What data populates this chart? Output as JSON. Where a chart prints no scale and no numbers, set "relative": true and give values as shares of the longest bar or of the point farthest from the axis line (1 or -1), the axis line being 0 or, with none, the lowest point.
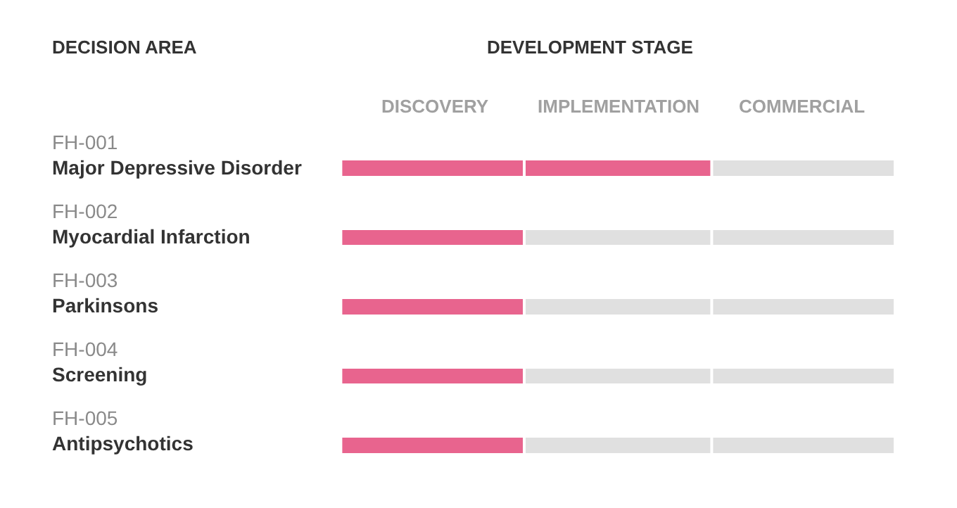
{
  "chart_data": {
    "type": "bar",
    "orientation": "horizontal",
    "stacked": true,
    "relative": true,
    "title": "DEVELOPMENT STAGE",
    "ylabel": "DECISION AREA",
    "annotations": [
      "DISCOVERY",
      "IMPLEMENTATION",
      "COMMERCIAL"
    ],
    "categories": [
      "FH-001\nMajor Depressive Disorder",
      "FH-002\nMyocardial Infarction",
      "FH-003\nParkinsons",
      "FH-004\nScreening",
      "FH-005\nAntipsychotics"
    ],
    "series": [
      {
        "values": [
          0.67,
          0.33,
          0.33,
          0.33,
          0.33
        ],
        "color": "#e8648e"
      },
      {
        "values": [
          0.33,
          0.67,
          0.67,
          0.67,
          0.67
        ],
        "color": "#e0e0e0"
      }
    ],
    "ref_lines": [
      {
        "axis": "x",
        "value": 0.33,
        "color": "#ffffff"
      },
      {
        "axis": "x",
        "value": 0.67,
        "color": "#ffffff"
      }
    ]
  }
}
